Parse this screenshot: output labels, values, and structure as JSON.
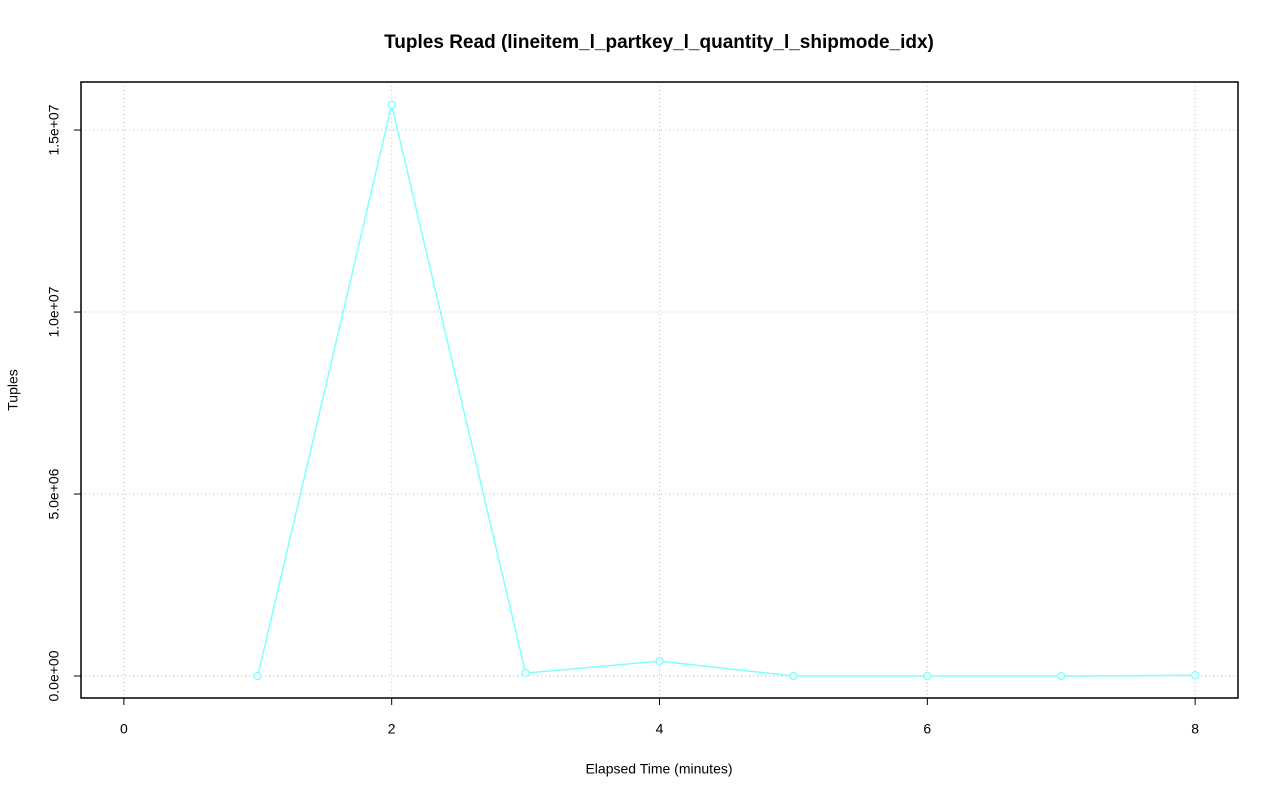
{
  "chart_data": {
    "type": "line",
    "title": "Tuples Read (lineitem_l_partkey_l_quantity_l_shipmode_idx)",
    "x_label": "Elapsed Time (minutes)",
    "y_label": "Tuples",
    "x": [
      1,
      2,
      3,
      4,
      5,
      6,
      7,
      8
    ],
    "series": [
      {
        "color": "#80ffff",
        "values": [
          0,
          15690000,
          80000,
          410000,
          0,
          0,
          0,
          20000
        ]
      }
    ],
    "xlim": [
      -0.32,
      8.32
    ],
    "xticks": [
      0,
      2,
      4,
      6,
      8
    ],
    "ylim": [
      -604000,
      16320000
    ],
    "yticks": [
      {
        "value": 0,
        "label": "0.0e+00"
      },
      {
        "value": 5000000,
        "label": "5.0e+06"
      },
      {
        "value": 10000000,
        "label": "1.0e+07"
      },
      {
        "value": 15000000,
        "label": "1.5e+07"
      }
    ],
    "grid": true
  }
}
